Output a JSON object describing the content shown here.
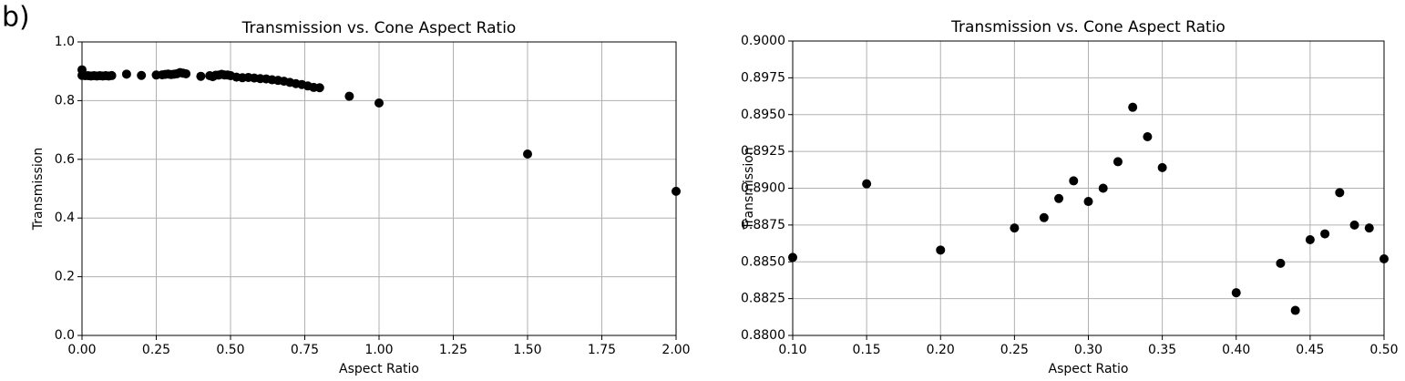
{
  "panel_label": "b)",
  "chart_data": [
    {
      "type": "scatter",
      "title": "Transmission vs. Cone Aspect Ratio",
      "x_label": "Aspect Ratio",
      "y_label": "Transmission",
      "color": "#000000",
      "grid": true,
      "x": [
        0,
        0,
        0.01,
        0.02,
        0.03,
        0.04,
        0.05,
        0.06,
        0.07,
        0.08,
        0.09,
        0.1,
        0.15,
        0.2,
        0.25,
        0.27,
        0.28,
        0.29,
        0.3,
        0.31,
        0.32,
        0.33,
        0.34,
        0.35,
        0.4,
        0.43,
        0.44,
        0.45,
        0.46,
        0.47,
        0.48,
        0.49,
        0.5,
        0.52,
        0.54,
        0.56,
        0.58,
        0.6,
        0.62,
        0.64,
        0.66,
        0.68,
        0.7,
        0.72,
        0.74,
        0.76,
        0.78,
        0.8,
        0.9,
        1.0,
        1.5,
        2.0
      ],
      "values": [
        0.905,
        0.886,
        0.885,
        0.885,
        0.884,
        0.885,
        0.884,
        0.885,
        0.884,
        0.885,
        0.884,
        0.8853,
        0.8903,
        0.8858,
        0.8873,
        0.888,
        0.8893,
        0.8905,
        0.8891,
        0.89,
        0.8918,
        0.8955,
        0.8935,
        0.8914,
        0.8829,
        0.8849,
        0.8817,
        0.8865,
        0.8869,
        0.8897,
        0.8875,
        0.8873,
        0.8852,
        0.88,
        0.878,
        0.879,
        0.877,
        0.875,
        0.874,
        0.871,
        0.869,
        0.866,
        0.862,
        0.858,
        0.855,
        0.85,
        0.845,
        0.844,
        0.815,
        0.792,
        0.618,
        0.491
      ],
      "xlim": [
        0,
        2
      ],
      "ylim": [
        0,
        1
      ],
      "xticks": [
        {
          "value": 0,
          "label": "0.00"
        },
        {
          "value": 0.25,
          "label": "0.25"
        },
        {
          "value": 0.5,
          "label": "0.50"
        },
        {
          "value": 0.75,
          "label": "0.75"
        },
        {
          "value": 1,
          "label": "1.00"
        },
        {
          "value": 1.25,
          "label": "1.25"
        },
        {
          "value": 1.5,
          "label": "1.50"
        },
        {
          "value": 1.75,
          "label": "1.75"
        },
        {
          "value": 2,
          "label": "2.00"
        }
      ],
      "yticks": [
        {
          "value": 0,
          "label": "0.0"
        },
        {
          "value": 0.2,
          "label": "0.2"
        },
        {
          "value": 0.4,
          "label": "0.4"
        },
        {
          "value": 0.6,
          "label": "0.6"
        },
        {
          "value": 0.8,
          "label": "0.8"
        },
        {
          "value": 1,
          "label": "1.0"
        }
      ]
    },
    {
      "type": "scatter",
      "title": "Transmission vs. Cone Aspect Ratio",
      "x_label": "Aspect Ratio",
      "y_label": "Transmission",
      "color": "#000000",
      "grid": true,
      "x": [
        0.1,
        0.15,
        0.2,
        0.25,
        0.27,
        0.28,
        0.29,
        0.3,
        0.31,
        0.32,
        0.33,
        0.34,
        0.35,
        0.4,
        0.43,
        0.44,
        0.45,
        0.46,
        0.47,
        0.48,
        0.49,
        0.5
      ],
      "values": [
        0.8853,
        0.8903,
        0.8858,
        0.8873,
        0.888,
        0.8893,
        0.8905,
        0.8891,
        0.89,
        0.8918,
        0.8955,
        0.8935,
        0.8914,
        0.8829,
        0.8849,
        0.8817,
        0.8865,
        0.8869,
        0.8897,
        0.8875,
        0.8873,
        0.8852
      ],
      "xlim": [
        0.1,
        0.5
      ],
      "ylim": [
        0.88,
        0.9
      ],
      "xticks": [
        {
          "value": 0.1,
          "label": "0.10"
        },
        {
          "value": 0.15,
          "label": "0.15"
        },
        {
          "value": 0.2,
          "label": "0.20"
        },
        {
          "value": 0.25,
          "label": "0.25"
        },
        {
          "value": 0.3,
          "label": "0.30"
        },
        {
          "value": 0.35,
          "label": "0.35"
        },
        {
          "value": 0.4,
          "label": "0.40"
        },
        {
          "value": 0.45,
          "label": "0.45"
        },
        {
          "value": 0.5,
          "label": "0.50"
        }
      ],
      "yticks": [
        {
          "value": 0.88,
          "label": "0.8800"
        },
        {
          "value": 0.8825,
          "label": "0.8825"
        },
        {
          "value": 0.885,
          "label": "0.8850"
        },
        {
          "value": 0.8875,
          "label": "0.8875"
        },
        {
          "value": 0.89,
          "label": "0.8900"
        },
        {
          "value": 0.8925,
          "label": "0.8925"
        },
        {
          "value": 0.895,
          "label": "0.8950"
        },
        {
          "value": 0.8975,
          "label": "0.8975"
        },
        {
          "value": 0.9,
          "label": "0.9000"
        }
      ]
    }
  ]
}
